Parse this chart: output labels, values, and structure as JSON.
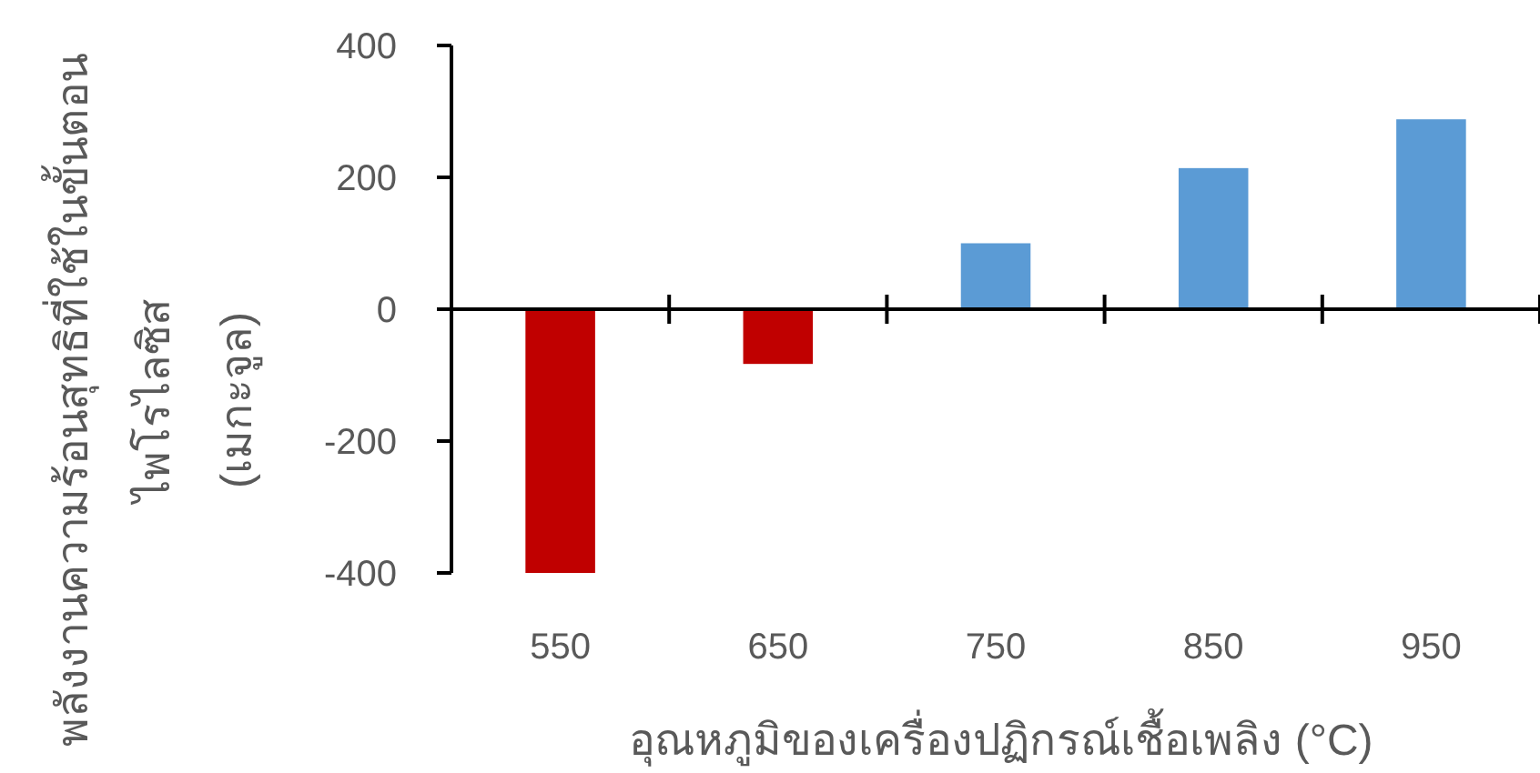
{
  "chart_data": {
    "type": "bar",
    "categories": [
      "550",
      "650",
      "750",
      "850",
      "950"
    ],
    "values": [
      -400,
      -83,
      100,
      214,
      288
    ],
    "colors": [
      "#c00000",
      "#c00000",
      "#5b9bd5",
      "#5b9bd5",
      "#5b9bd5"
    ],
    "ylim": [
      -400,
      400
    ],
    "yticks": [
      -400,
      -200,
      0,
      200,
      400
    ],
    "xlabel": "อุณหภูมิของเครื่องปฏิกรณ์เชื้อเพลิง (°C)",
    "ylabel": "พลังงานความร้อนสุทธิที่ใช้ในขั้นตอน\nไพโรไลซิส\n(เมกะจูล)"
  }
}
